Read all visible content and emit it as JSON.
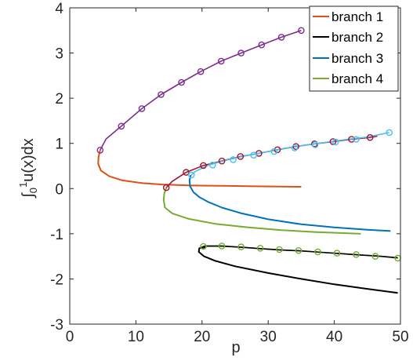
{
  "chart_data": {
    "type": "line",
    "xlabel": "p",
    "ylabel": "∫01u(x)dx",
    "ylabel_parts": {
      "integral": "∫",
      "sub": "0",
      "sup": "1",
      "rest": "u(x)dx"
    },
    "xlim": [
      0,
      50
    ],
    "ylim": [
      -3,
      4
    ],
    "xticks": [
      "0",
      "10",
      "20",
      "30",
      "40",
      "50"
    ],
    "yticks": [
      "-3",
      "-2",
      "-1",
      "0",
      "1",
      "2",
      "3",
      "4"
    ],
    "grid": false,
    "legend_position": "top-right",
    "series": [
      {
        "name": "branch 1",
        "color": "#d95319",
        "points": [
          [
            4.6,
            0.85
          ],
          [
            4.35,
            0.7
          ],
          [
            4.3,
            0.55
          ],
          [
            4.7,
            0.4
          ],
          [
            6,
            0.27
          ],
          [
            8,
            0.18
          ],
          [
            11,
            0.12
          ],
          [
            14,
            0.09
          ],
          [
            18,
            0.07
          ],
          [
            23,
            0.06
          ],
          [
            28,
            0.05
          ],
          [
            35,
            0.04
          ]
        ]
      },
      {
        "name": "branch 2",
        "color": "#000000",
        "points": [
          [
            20.5,
            -1.3
          ],
          [
            19.6,
            -1.32
          ],
          [
            19.5,
            -1.4
          ],
          [
            20.3,
            -1.5
          ],
          [
            22,
            -1.6
          ],
          [
            25,
            -1.72
          ],
          [
            30,
            -1.87
          ],
          [
            35,
            -2.0
          ],
          [
            40,
            -2.12
          ],
          [
            45,
            -2.22
          ],
          [
            49.6,
            -2.31
          ]
        ]
      },
      {
        "name": "branch 3",
        "color": "#0072bd",
        "points": [
          [
            18.3,
            0.3
          ],
          [
            18.1,
            0.18
          ],
          [
            18.2,
            0.05
          ],
          [
            18.7,
            -0.08
          ],
          [
            19.6,
            -0.19
          ],
          [
            21,
            -0.3
          ],
          [
            23,
            -0.42
          ],
          [
            26,
            -0.55
          ],
          [
            30,
            -0.68
          ],
          [
            35,
            -0.79
          ],
          [
            40,
            -0.86
          ],
          [
            45,
            -0.91
          ],
          [
            48.5,
            -0.94
          ]
        ]
      },
      {
        "name": "branch 4",
        "color": "#77ac30",
        "points": [
          [
            14.6,
            0.02
          ],
          [
            14.3,
            -0.1
          ],
          [
            14.2,
            -0.25
          ],
          [
            14.4,
            -0.42
          ],
          [
            15.5,
            -0.55
          ],
          [
            18,
            -0.67
          ],
          [
            22,
            -0.78
          ],
          [
            27,
            -0.86
          ],
          [
            32,
            -0.92
          ],
          [
            37,
            -0.96
          ],
          [
            44,
            -1.0
          ]
        ]
      }
    ],
    "marked_series": [
      {
        "line_color": "#7e2f8e",
        "marker_color": "#7e2f8e",
        "points": [
          [
            4.6,
            0.85
          ],
          [
            5.5,
            1.1
          ],
          [
            7.8,
            1.38
          ],
          [
            10.9,
            1.77
          ],
          [
            13.8,
            2.08
          ],
          [
            16.9,
            2.35
          ],
          [
            19.8,
            2.59
          ],
          [
            22.9,
            2.82
          ],
          [
            25.9,
            3.0
          ],
          [
            29.0,
            3.18
          ],
          [
            32.0,
            3.35
          ],
          [
            35.0,
            3.5
          ]
        ],
        "markers": [
          [
            4.6,
            0.85
          ],
          [
            7.8,
            1.38
          ],
          [
            10.9,
            1.77
          ],
          [
            13.8,
            2.08
          ],
          [
            16.9,
            2.35
          ],
          [
            19.8,
            2.59
          ],
          [
            22.9,
            2.82
          ],
          [
            25.9,
            3.0
          ],
          [
            29.0,
            3.18
          ],
          [
            32.0,
            3.35
          ],
          [
            35.0,
            3.5
          ]
        ]
      },
      {
        "line_color": "#a2142f",
        "marker_color": "#a2142f",
        "points": [
          [
            14.6,
            0.02
          ],
          [
            15.5,
            0.16
          ],
          [
            17.6,
            0.36
          ],
          [
            20.2,
            0.51
          ],
          [
            23.0,
            0.61
          ],
          [
            25.8,
            0.71
          ],
          [
            28.6,
            0.78
          ],
          [
            31.4,
            0.86
          ],
          [
            34.2,
            0.93
          ],
          [
            37.0,
            0.99
          ],
          [
            39.8,
            1.04
          ],
          [
            42.6,
            1.09
          ],
          [
            45.4,
            1.13
          ],
          [
            46.5,
            1.16
          ]
        ],
        "markers": [
          [
            14.6,
            0.02
          ],
          [
            17.6,
            0.36
          ],
          [
            20.2,
            0.51
          ],
          [
            23.0,
            0.61
          ],
          [
            25.8,
            0.71
          ],
          [
            28.6,
            0.78
          ],
          [
            31.4,
            0.86
          ],
          [
            34.2,
            0.93
          ],
          [
            37.0,
            0.99
          ],
          [
            39.8,
            1.04
          ],
          [
            42.6,
            1.09
          ],
          [
            45.4,
            1.13
          ]
        ]
      },
      {
        "line_color": "#4dbeee",
        "marker_color": "#4dbeee",
        "points": [
          [
            18.4,
            0.3
          ],
          [
            19.0,
            0.38
          ],
          [
            21.0,
            0.52
          ],
          [
            24.0,
            0.64
          ],
          [
            27.0,
            0.74
          ],
          [
            30.0,
            0.82
          ],
          [
            33.0,
            0.9
          ],
          [
            36.0,
            0.97
          ],
          [
            39.0,
            1.03
          ],
          [
            42.0,
            1.09
          ],
          [
            45.0,
            1.14
          ],
          [
            48.3,
            1.24
          ]
        ],
        "markers": [
          [
            18.4,
            0.3
          ],
          [
            21.6,
            0.52
          ],
          [
            24.7,
            0.64
          ],
          [
            27.8,
            0.74
          ],
          [
            30.9,
            0.82
          ],
          [
            34.0,
            0.9
          ],
          [
            37.1,
            0.97
          ],
          [
            40.2,
            1.03
          ],
          [
            43.3,
            1.09
          ],
          [
            48.3,
            1.24
          ]
        ]
      },
      {
        "line_color": "#77ac30",
        "marker_color": "#77ac30",
        "points": [
          [
            19.6,
            -1.32
          ],
          [
            20.2,
            -1.28
          ],
          [
            23.0,
            -1.28
          ],
          [
            26.0,
            -1.3
          ],
          [
            29.0,
            -1.33
          ],
          [
            32.0,
            -1.36
          ],
          [
            35.0,
            -1.38
          ],
          [
            38.0,
            -1.41
          ],
          [
            41.0,
            -1.44
          ],
          [
            44.0,
            -1.47
          ],
          [
            47.0,
            -1.5
          ],
          [
            49.6,
            -1.54
          ]
        ],
        "markers": [
          [
            20.2,
            -1.28
          ],
          [
            23.0,
            -1.27
          ],
          [
            25.9,
            -1.29
          ],
          [
            28.8,
            -1.32
          ],
          [
            31.7,
            -1.35
          ],
          [
            34.6,
            -1.37
          ],
          [
            37.5,
            -1.4
          ],
          [
            40.4,
            -1.43
          ],
          [
            43.3,
            -1.46
          ],
          [
            46.2,
            -1.5
          ],
          [
            49.6,
            -1.54
          ]
        ]
      },
      {
        "line_color": "#000000",
        "marker_color": null,
        "points": [
          [
            19.6,
            -1.32
          ],
          [
            20.5,
            -1.27
          ],
          [
            23.0,
            -1.27
          ],
          [
            26.0,
            -1.3
          ],
          [
            29.0,
            -1.33
          ],
          [
            32.0,
            -1.36
          ],
          [
            35.0,
            -1.38
          ],
          [
            38.0,
            -1.41
          ],
          [
            41.0,
            -1.44
          ],
          [
            44.0,
            -1.47
          ],
          [
            47.0,
            -1.5
          ],
          [
            49.6,
            -1.53
          ]
        ],
        "markers": []
      }
    ]
  }
}
